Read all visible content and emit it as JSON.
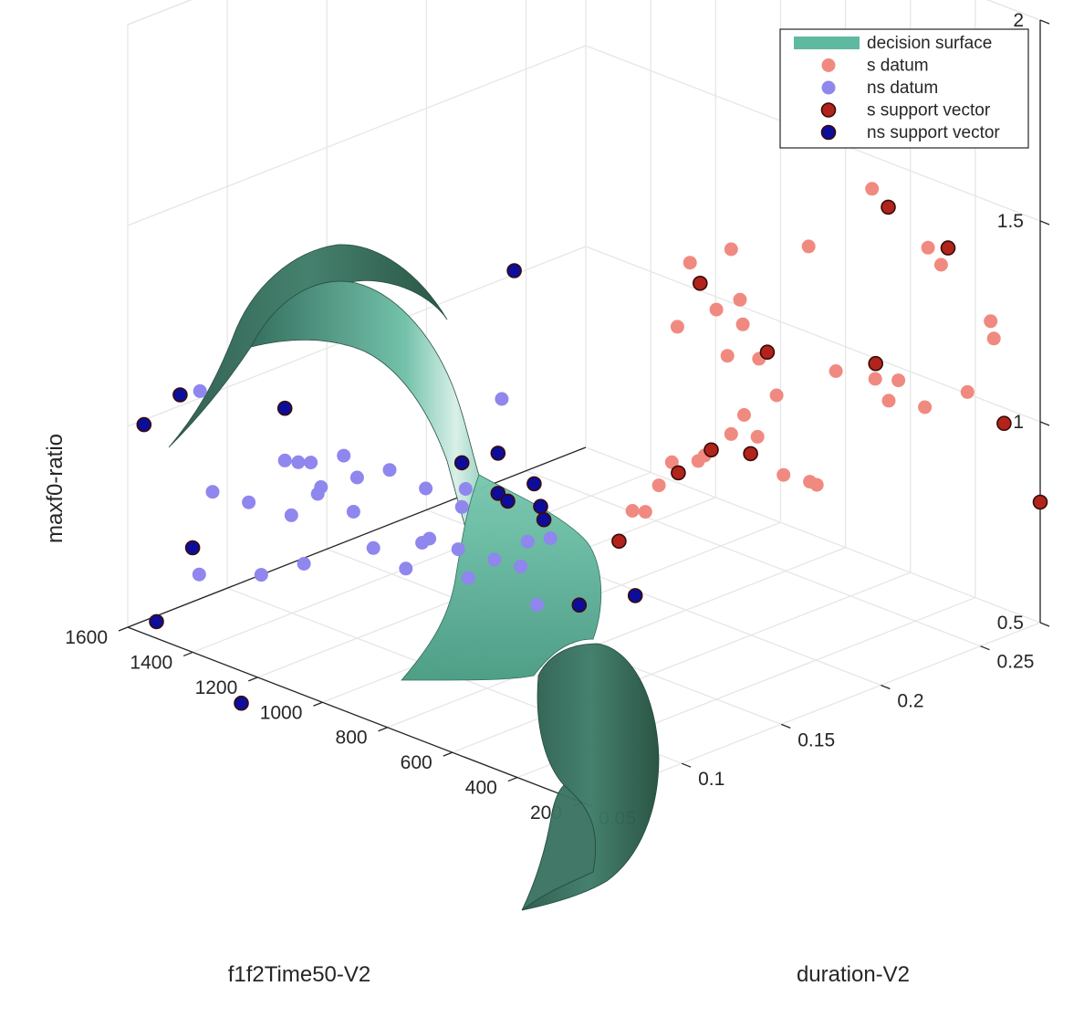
{
  "chart_data": {
    "type": "scatter3d",
    "axes": {
      "x": {
        "label": "f1f2Time50-V2",
        "ticks": [
          200,
          400,
          600,
          800,
          1000,
          1200,
          1400,
          1600
        ],
        "range": [
          200,
          1600
        ]
      },
      "y": {
        "label": "duration-V2",
        "ticks": [
          0.05,
          0.1,
          0.15,
          0.2,
          0.25
        ],
        "range": [
          0.05,
          0.28
        ]
      },
      "z": {
        "label": "maxf0-ratio",
        "ticks": [
          0.5,
          1,
          1.5,
          2
        ],
        "tick_labels": [
          "0.5",
          "1",
          "1.5",
          "2"
        ],
        "range": [
          0.5,
          2
        ]
      }
    },
    "grid": true,
    "legend_position": "top-right",
    "surface": {
      "name": "decision surface",
      "color": "#5fb8a0"
    },
    "series": [
      {
        "name": "s datum",
        "color": "#f08a80",
        "points": [
          [
            420,
            0.14,
            1.6
          ],
          [
            400,
            0.15,
            1.47
          ],
          [
            380,
            0.16,
            1.42
          ],
          [
            450,
            0.17,
            1.44
          ],
          [
            520,
            0.15,
            1.39
          ],
          [
            330,
            0.16,
            1.35
          ],
          [
            300,
            0.18,
            1.6
          ],
          [
            600,
            0.19,
            1.48
          ],
          [
            550,
            0.18,
            1.25
          ],
          [
            460,
            0.19,
            1.16
          ],
          [
            350,
            0.22,
            1.65
          ],
          [
            300,
            0.24,
            1.48
          ],
          [
            260,
            0.24,
            1.45
          ],
          [
            400,
            0.21,
            1.2
          ],
          [
            340,
            0.22,
            1.18
          ],
          [
            330,
            0.23,
            1.16
          ],
          [
            360,
            0.23,
            1.1
          ],
          [
            310,
            0.24,
            1.08
          ],
          [
            240,
            0.25,
            1.12
          ],
          [
            230,
            0.26,
            1.28
          ],
          [
            220,
            0.26,
            1.24
          ],
          [
            600,
            0.19,
            1.02
          ],
          [
            580,
            0.2,
            1.0
          ],
          [
            620,
            0.18,
            0.98
          ],
          [
            560,
            0.19,
            1.08
          ],
          [
            500,
            0.2,
            0.93
          ],
          [
            480,
            0.21,
            0.9
          ],
          [
            520,
            0.22,
            0.86
          ],
          [
            660,
            0.17,
            0.97
          ],
          [
            640,
            0.18,
            0.96
          ],
          [
            700,
            0.17,
            0.9
          ],
          [
            720,
            0.16,
            0.85
          ],
          [
            680,
            0.16,
            0.86
          ]
        ]
      },
      {
        "name": "ns datum",
        "color": "#8f86ee",
        "points": [
          [
            1500,
            0.07,
            1.08
          ],
          [
            1300,
            0.08,
            0.95
          ],
          [
            1320,
            0.09,
            0.92
          ],
          [
            1350,
            0.07,
            0.85
          ],
          [
            1280,
            0.08,
            0.82
          ],
          [
            1400,
            0.06,
            0.88
          ],
          [
            1250,
            0.09,
            0.88
          ],
          [
            1200,
            0.1,
            0.9
          ],
          [
            1150,
            0.09,
            0.85
          ],
          [
            1100,
            0.1,
            0.95
          ],
          [
            1050,
            0.11,
            0.9
          ],
          [
            1000,
            0.12,
            0.85
          ],
          [
            1180,
            0.07,
            0.75
          ],
          [
            1250,
            0.06,
            0.72
          ],
          [
            1380,
            0.05,
            0.7
          ],
          [
            1000,
            0.1,
            0.8
          ],
          [
            950,
            0.11,
            0.78
          ],
          [
            900,
            0.12,
            0.75
          ],
          [
            880,
            0.13,
            0.72
          ],
          [
            1050,
            0.1,
            0.72
          ],
          [
            980,
            0.12,
            0.68
          ],
          [
            920,
            0.14,
            0.75
          ],
          [
            850,
            0.14,
            0.78
          ],
          [
            1000,
            0.14,
            1.08
          ],
          [
            1100,
            0.12,
            0.74
          ],
          [
            1150,
            0.1,
            0.74
          ],
          [
            830,
            0.13,
            0.64
          ],
          [
            1180,
            0.09,
            0.98
          ],
          [
            1220,
            0.08,
            0.97
          ],
          [
            1260,
            0.09,
            0.86
          ],
          [
            1050,
            0.13,
            0.86
          ]
        ]
      },
      {
        "name": "s support vector",
        "color": "#b0241c",
        "points": [
          [
            450,
            0.15,
            1.52
          ],
          [
            300,
            0.22,
            1.62
          ],
          [
            300,
            0.25,
            1.46
          ],
          [
            400,
            0.23,
            1.18
          ],
          [
            550,
            0.2,
            1.22
          ],
          [
            600,
            0.18,
            1.0
          ],
          [
            540,
            0.19,
            0.99
          ],
          [
            250,
            0.27,
            1.0
          ],
          [
            200,
            0.28,
            0.8
          ],
          [
            640,
            0.17,
            0.95
          ],
          [
            700,
            0.15,
            0.8
          ]
        ]
      },
      {
        "name": "ns support vector",
        "color": "#0d0d9c",
        "points": [
          [
            1550,
            0.05,
            1.02
          ],
          [
            1500,
            0.06,
            1.09
          ],
          [
            1300,
            0.08,
            1.08
          ],
          [
            1400,
            0.05,
            0.76
          ],
          [
            1450,
            0.04,
            0.58
          ],
          [
            1250,
            0.05,
            0.42
          ],
          [
            900,
            0.13,
            1.45
          ],
          [
            1000,
            0.12,
            0.96
          ],
          [
            950,
            0.13,
            0.98
          ],
          [
            900,
            0.14,
            0.9
          ],
          [
            950,
            0.13,
            0.88
          ],
          [
            920,
            0.13,
            0.87
          ],
          [
            880,
            0.14,
            0.85
          ],
          [
            870,
            0.14,
            0.82
          ],
          [
            700,
            0.13,
            0.68
          ],
          [
            650,
            0.15,
            0.68
          ]
        ]
      }
    ]
  }
}
